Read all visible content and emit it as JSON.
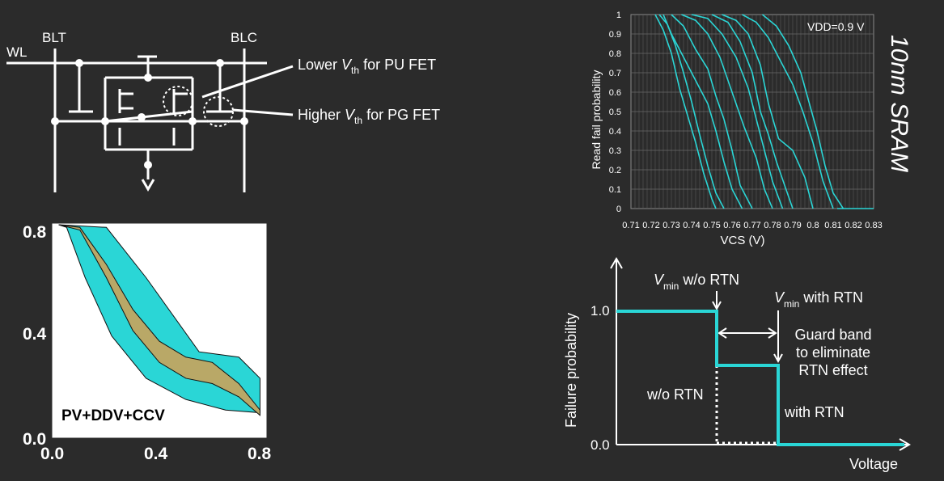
{
  "circuit": {
    "labels": {
      "wl": "WL",
      "blt": "BLT",
      "blc": "BLC"
    },
    "annotation_pu": {
      "prefix": "Lower ",
      "v": "V",
      "sub": "th",
      "suffix": " for PU FET"
    },
    "annotation_pg": {
      "prefix": "Higher ",
      "v": "V",
      "sub": "th",
      "suffix": " for PG FET"
    }
  },
  "butterfly": {
    "legend": "PV+DDV+CCV",
    "x_ticks": [
      "0.0",
      "0.4",
      "0.8"
    ],
    "y_ticks": [
      "0.8",
      "0.4",
      "0.0"
    ],
    "colors": {
      "tan": "#b9a867",
      "cyan": "#2ad6d6",
      "frame": "#ffffff",
      "bg": "#ffffff"
    },
    "chart_data": {
      "type": "line",
      "xlim": [
        0,
        0.8
      ],
      "ylim": [
        0,
        0.8
      ],
      "series": [
        {
          "x": [
            0.02,
            0.1,
            0.2,
            0.3,
            0.4,
            0.5,
            0.6,
            0.7,
            0.78
          ],
          "y": [
            0.8,
            0.79,
            0.65,
            0.48,
            0.36,
            0.3,
            0.28,
            0.2,
            0.1
          ]
        },
        {
          "x": [
            0.02,
            0.1,
            0.2,
            0.3,
            0.4,
            0.5,
            0.6,
            0.7,
            0.78
          ],
          "y": [
            0.8,
            0.78,
            0.6,
            0.4,
            0.28,
            0.22,
            0.2,
            0.15,
            0.08
          ]
        }
      ]
    }
  },
  "read_fail": {
    "title_vertical": "10nm SRAM",
    "vdd_label": "VDD=0.9 V",
    "xlabel": "VCS (V)",
    "ylabel": "Read fail probability",
    "color": "#2ad6d6",
    "chart_data": {
      "type": "line",
      "xlim": [
        0.71,
        0.83
      ],
      "ylim": [
        0,
        1
      ],
      "x_ticks": [
        "0.71",
        "0.72",
        "0.73",
        "0.74",
        "0.75",
        "0.76",
        "0.77",
        "0.78",
        "0.79",
        "0.8",
        "0.81",
        "0.82",
        "0.83"
      ],
      "y_ticks": [
        "0",
        "0.1",
        "0.2",
        "0.3",
        "0.4",
        "0.5",
        "0.6",
        "0.7",
        "0.8",
        "0.9",
        "1"
      ],
      "grid": true,
      "series": [
        {
          "x": [
            0.722,
            0.726,
            0.73,
            0.734,
            0.738,
            0.742,
            0.746,
            0.75,
            0.752
          ],
          "y": [
            1,
            0.92,
            0.8,
            0.62,
            0.48,
            0.34,
            0.18,
            0.05,
            0
          ]
        },
        {
          "x": [
            0.724,
            0.728,
            0.732,
            0.736,
            0.74,
            0.744,
            0.748,
            0.752,
            0.756
          ],
          "y": [
            1,
            0.95,
            0.84,
            0.7,
            0.55,
            0.38,
            0.22,
            0.08,
            0
          ]
        },
        {
          "x": [
            0.726,
            0.73,
            0.736,
            0.742,
            0.748,
            0.752,
            0.756,
            0.76,
            0.765
          ],
          "y": [
            1,
            0.9,
            0.78,
            0.66,
            0.54,
            0.4,
            0.24,
            0.1,
            0
          ]
        },
        {
          "x": [
            0.73,
            0.736,
            0.742,
            0.748,
            0.752,
            0.756,
            0.76,
            0.764,
            0.77
          ],
          "y": [
            1,
            0.94,
            0.82,
            0.72,
            0.58,
            0.46,
            0.3,
            0.12,
            0
          ]
        },
        {
          "x": [
            0.735,
            0.742,
            0.748,
            0.754,
            0.76,
            0.766,
            0.772,
            0.776,
            0.78
          ],
          "y": [
            1,
            0.97,
            0.9,
            0.78,
            0.6,
            0.42,
            0.26,
            0.1,
            0
          ]
        },
        {
          "x": [
            0.74,
            0.748,
            0.755,
            0.762,
            0.768,
            0.772,
            0.776,
            0.78,
            0.785
          ],
          "y": [
            1,
            0.98,
            0.9,
            0.78,
            0.62,
            0.46,
            0.3,
            0.14,
            0
          ]
        },
        {
          "x": [
            0.75,
            0.758,
            0.764,
            0.77,
            0.774,
            0.778,
            0.782,
            0.786,
            0.79
          ],
          "y": [
            1,
            0.96,
            0.86,
            0.7,
            0.5,
            0.38,
            0.24,
            0.12,
            0
          ]
        },
        {
          "x": [
            0.755,
            0.762,
            0.768,
            0.774,
            0.778,
            0.783,
            0.79,
            0.796,
            0.8
          ],
          "y": [
            1,
            0.97,
            0.9,
            0.74,
            0.54,
            0.36,
            0.3,
            0.16,
            0
          ]
        },
        {
          "x": [
            0.765,
            0.772,
            0.778,
            0.784,
            0.79,
            0.795,
            0.8,
            0.805,
            0.81
          ],
          "y": [
            1,
            0.96,
            0.88,
            0.76,
            0.64,
            0.5,
            0.34,
            0.14,
            0
          ]
        },
        {
          "x": [
            0.775,
            0.782,
            0.788,
            0.794,
            0.798,
            0.802,
            0.806,
            0.81,
            0.815
          ],
          "y": [
            1,
            0.94,
            0.84,
            0.7,
            0.55,
            0.4,
            0.22,
            0.08,
            0
          ]
        }
      ]
    }
  },
  "guard": {
    "ylabel": "Failure probability",
    "xlabel": "Voltage",
    "y_tick_10": "1.0",
    "y_tick_00": "0.0",
    "vmin_wo": {
      "v": "V",
      "sub": "min",
      "rest": " w/o RTN"
    },
    "vmin_with": {
      "v": "V",
      "sub": "min",
      "rest": " with RTN"
    },
    "guard_band_lines": [
      "Guard band",
      "to eliminate",
      "RTN effect"
    ],
    "wo_rtn": "w/o RTN",
    "with_rtn": "with RTN",
    "color": "#2ad6d6",
    "chart_data": {
      "type": "line",
      "series": [
        {
          "name": "w/o RTN",
          "x": [
            0,
            1,
            1,
            3
          ],
          "y": [
            1.0,
            1.0,
            0.0,
            0.0
          ]
        },
        {
          "name": "with RTN",
          "x": [
            0,
            1,
            1,
            2,
            2,
            3
          ],
          "y": [
            1.0,
            1.0,
            0.6,
            0.6,
            0.0,
            0.0
          ]
        }
      ]
    }
  }
}
